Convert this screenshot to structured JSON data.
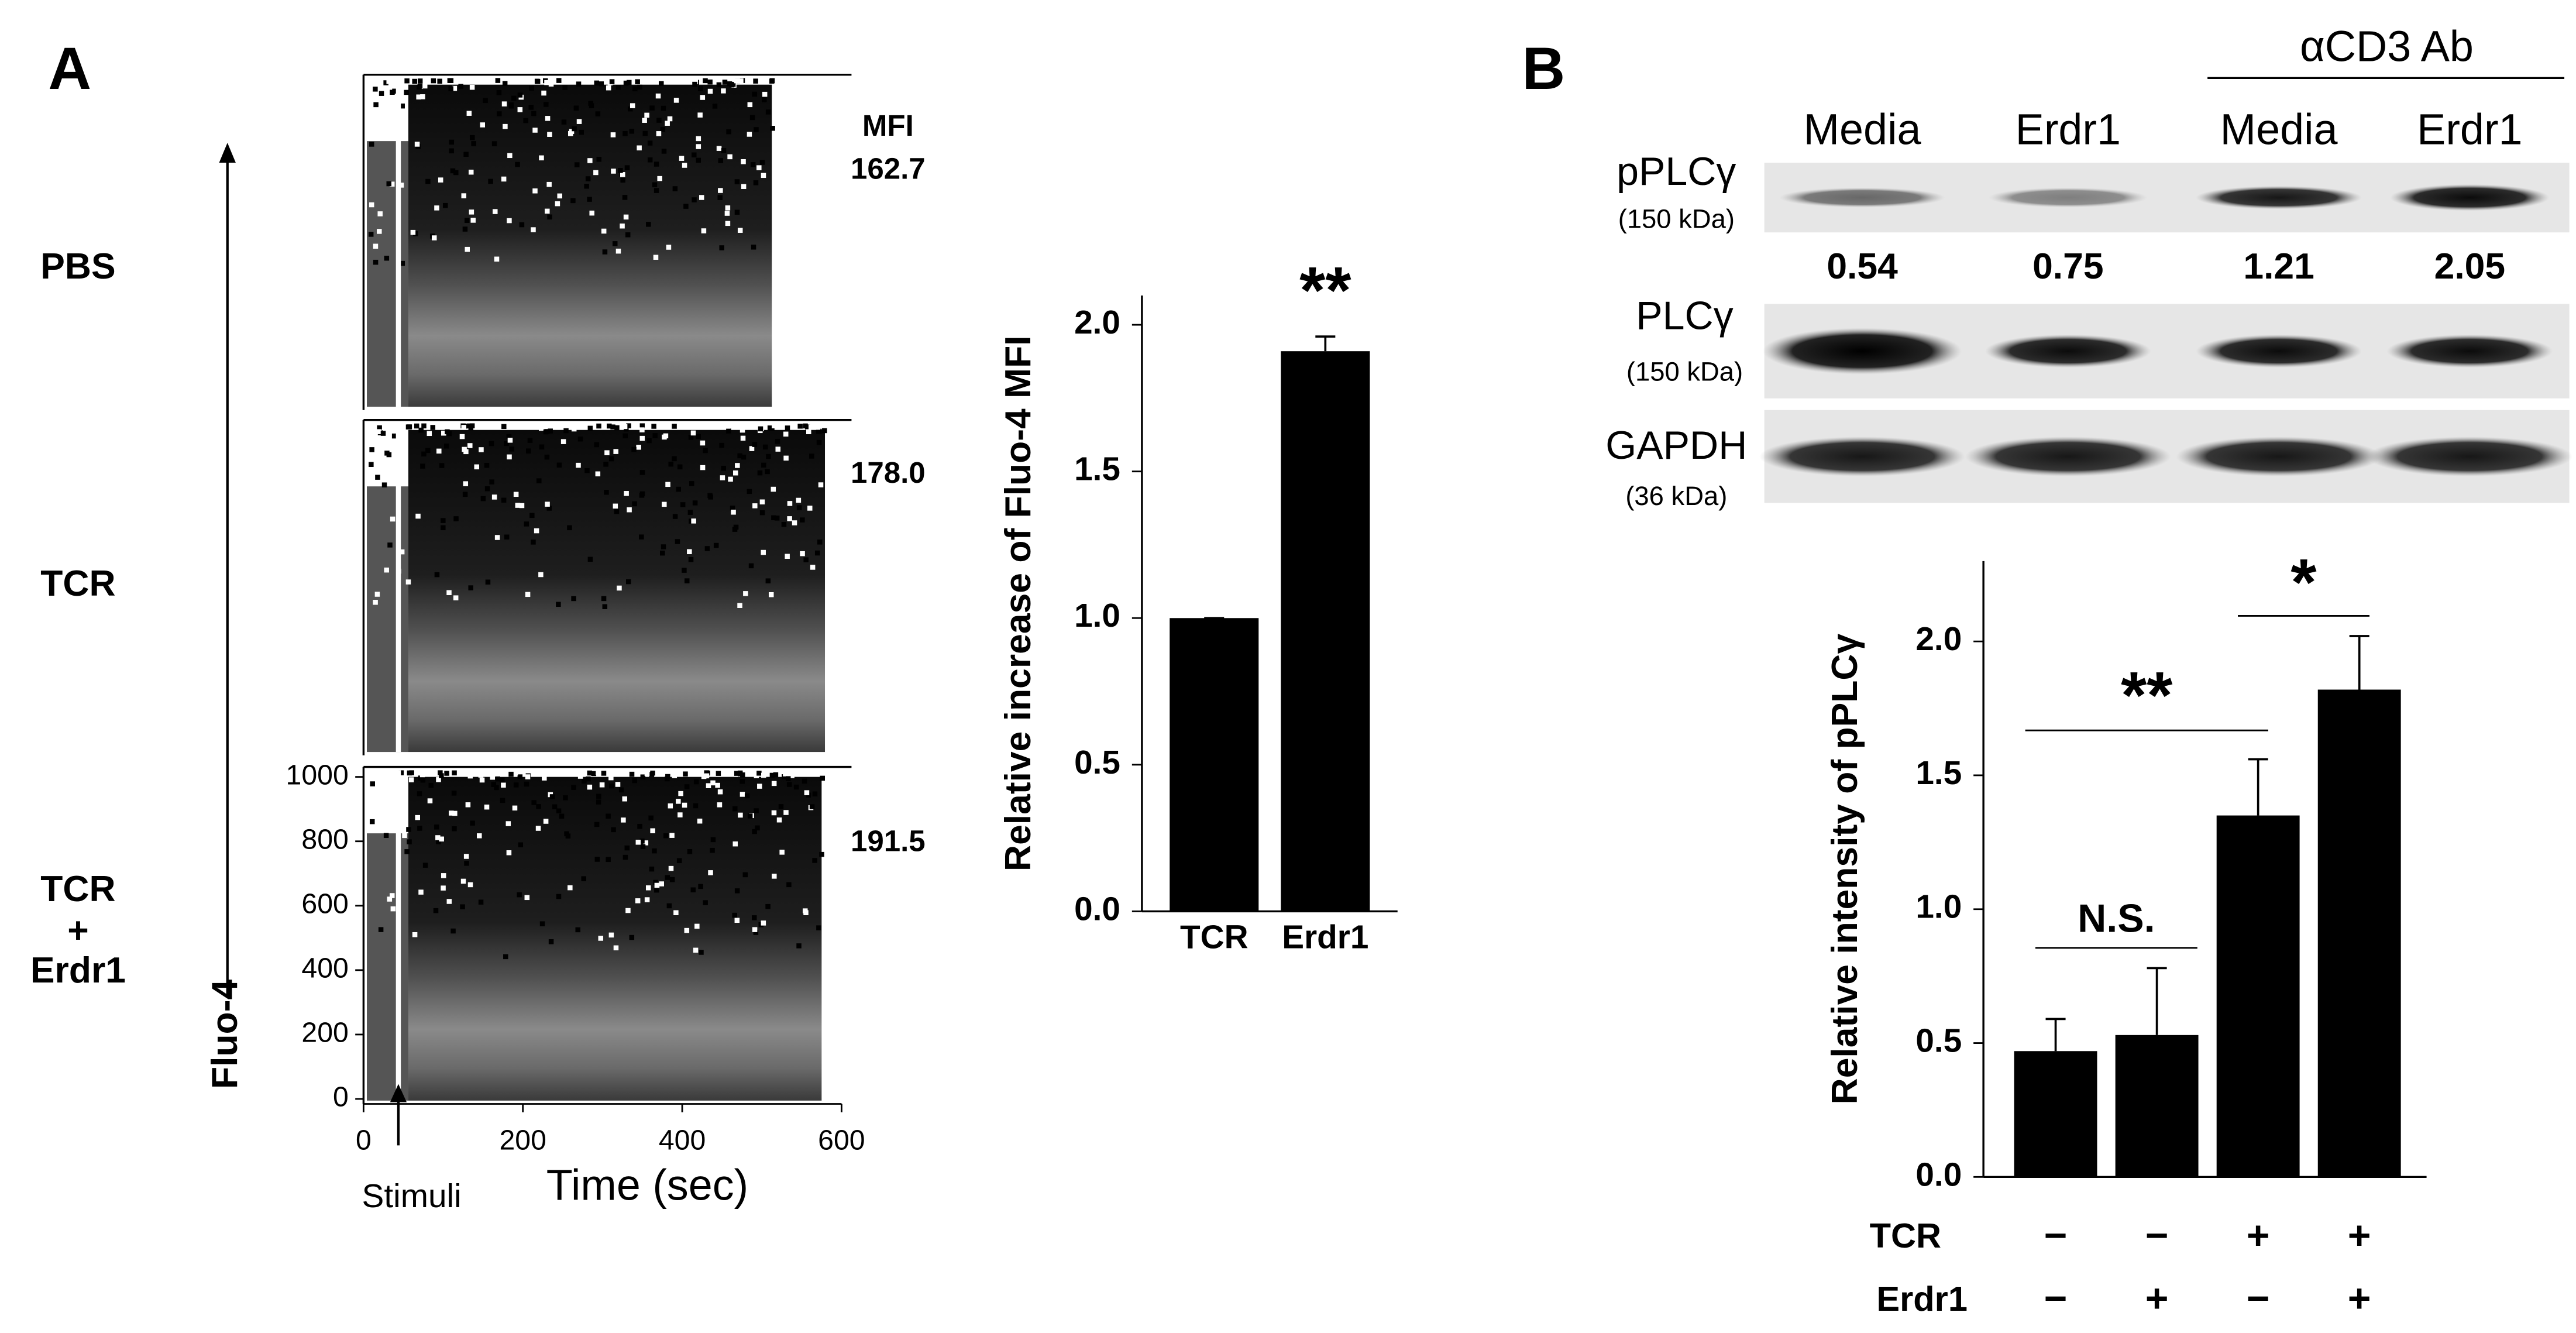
{
  "panel_a": {
    "label": "A",
    "mfi_header": "MFI",
    "rows": [
      {
        "label": [
          "PBS"
        ],
        "mfi": "162.7"
      },
      {
        "label": [
          "TCR"
        ],
        "mfi": "178.0"
      },
      {
        "label": [
          "TCR",
          "+",
          "Erdr1"
        ],
        "mfi": "191.5"
      }
    ]
  },
  "panel_b": {
    "label": "B",
    "group_label": "αCD3 Ab",
    "lanes": [
      "Media",
      "Erdr1",
      "Media",
      "Erdr1"
    ],
    "blots": [
      {
        "name": "pPLCγ",
        "size": "(150 kDa)",
        "quantification": [
          "0.54",
          "0.75",
          "1.21",
          "2.05"
        ]
      },
      {
        "name": "PLCγ",
        "size": "(150 kDa)"
      },
      {
        "name": "GAPDH",
        "size": "(36 kDa)"
      }
    ]
  },
  "chart_data": [
    {
      "type": "density",
      "xlabel": "Time (sec)",
      "ylabel": "Fluo-4",
      "annotation": "Stimuli",
      "xlim": [
        0,
        600
      ],
      "xticks": [
        0,
        200,
        400,
        600
      ],
      "ylim": [
        0,
        1000
      ],
      "yticks": [
        0,
        200,
        400,
        600,
        800,
        1000
      ]
    },
    {
      "type": "bar",
      "ylabel": "Relative increase of Fluo-4 MFI",
      "categories": [
        "TCR",
        "Erdr1"
      ],
      "values": [
        1.0,
        1.91
      ],
      "errors": [
        0,
        0.05
      ],
      "color": "#000000",
      "ylim": [
        0,
        2.1
      ],
      "yticks": [
        {
          "value": 0,
          "label": "0.0"
        },
        {
          "value": 0.5,
          "label": "0.5"
        },
        {
          "value": 1,
          "label": "1.0"
        },
        {
          "value": 1.5,
          "label": "1.5"
        },
        {
          "value": 2,
          "label": "2.0"
        }
      ],
      "annotations": [
        "**"
      ]
    },
    {
      "type": "bar",
      "ylabel": "Relative intensity of pPLCγ",
      "values": [
        0.47,
        0.53,
        1.35,
        1.82
      ],
      "errors": [
        0.12,
        0.25,
        0.21,
        0.2
      ],
      "color": "#000000",
      "ylim": [
        0,
        2.3
      ],
      "yticks": [
        {
          "value": 0,
          "label": "0.0"
        },
        {
          "value": 0.5,
          "label": "0.5"
        },
        {
          "value": 1,
          "label": "1.0"
        },
        {
          "value": 1.5,
          "label": "1.5"
        },
        {
          "value": 2,
          "label": "2.0"
        }
      ],
      "annotations": [
        "N.S.",
        "**",
        "*"
      ],
      "conditions": [
        {
          "name": "TCR",
          "signs": [
            "−",
            "−",
            "+",
            "+"
          ]
        },
        {
          "name": "Erdr1",
          "signs": [
            "−",
            "+",
            "−",
            "+"
          ]
        }
      ]
    }
  ]
}
